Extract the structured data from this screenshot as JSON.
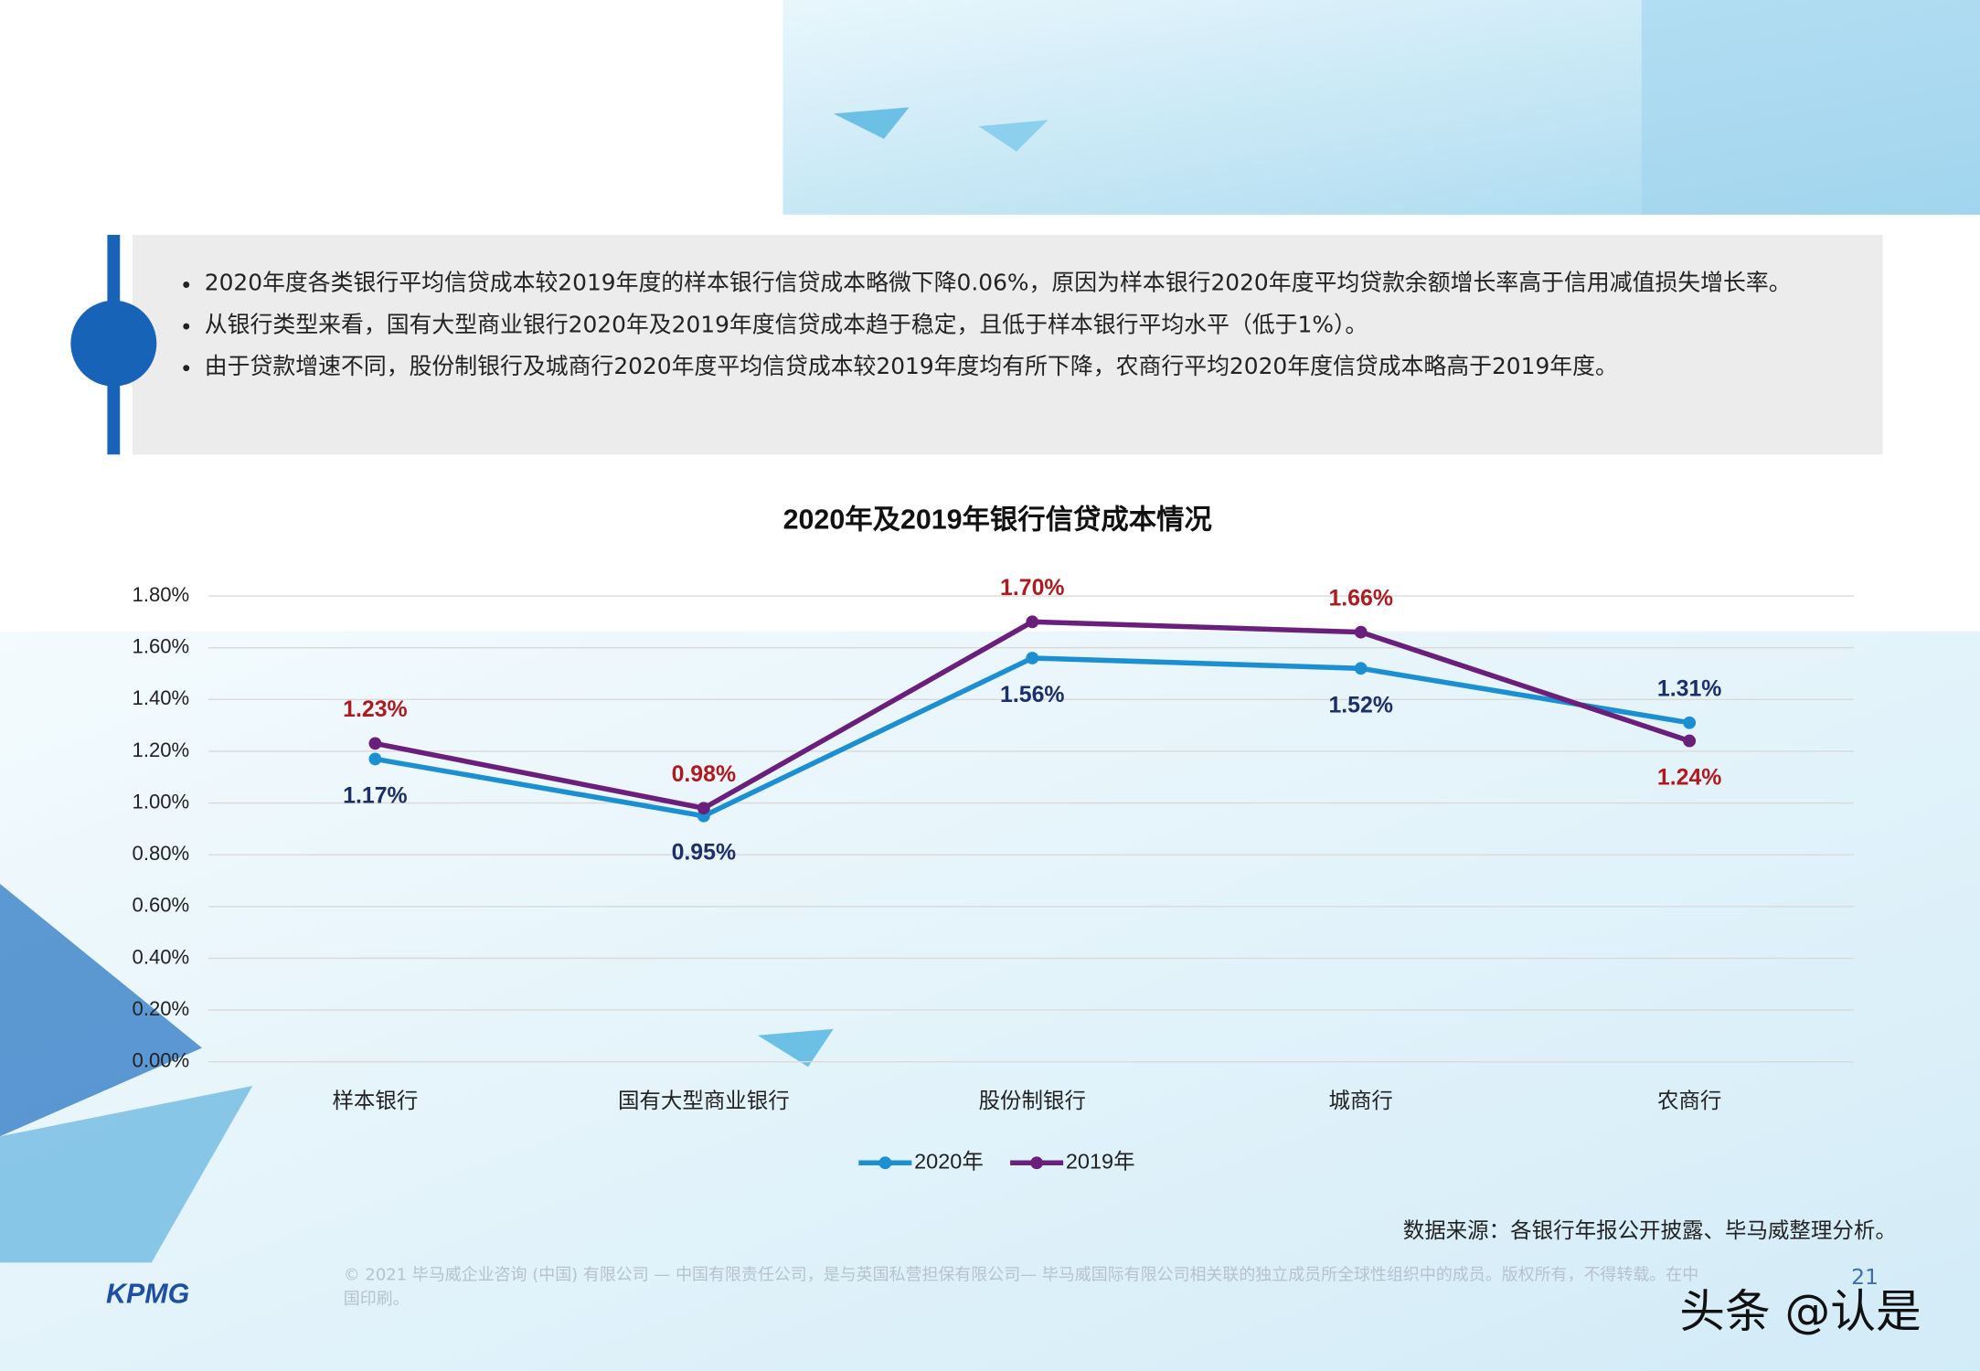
{
  "header": {
    "bullets": [
      "2020年度各类银行平均信贷成本较2019年度的样本银行信贷成本略微下降0.06%，原因为样本银行2020年度平均贷款余额增长率高于信用减值损失增长率。",
      "从银行类型来看，国有大型商业银行2020年及2019年度信贷成本趋于稳定，且低于样本银行平均水平（低于1%）。",
      "由于贷款增速不同，股份制银行及城商行2020年度平均信贷成本较2019年度均有所下降，农商行平均2020年度信贷成本略高于2019年度。"
    ]
  },
  "chart_data": {
    "type": "line",
    "title": "2020年及2019年银行信贷成本情况",
    "categories": [
      "样本银行",
      "国有大型商业银行",
      "股份制银行",
      "城商行",
      "农商行"
    ],
    "series": [
      {
        "name": "2020年",
        "color": "#1b8fd2",
        "label_color": "#1d2f6a",
        "values": [
          1.17,
          0.95,
          1.56,
          1.52,
          1.31
        ],
        "value_labels": [
          "1.17%",
          "0.95%",
          "1.56%",
          "1.52%",
          "1.31%"
        ]
      },
      {
        "name": "2019年",
        "color": "#6b1f7c",
        "label_color": "#b0191e",
        "values": [
          1.23,
          0.98,
          1.7,
          1.66,
          1.24
        ],
        "value_labels": [
          "1.23%",
          "0.98%",
          "1.70%",
          "1.66%",
          "1.24%"
        ]
      }
    ],
    "ylim": [
      0,
      1.8
    ],
    "yticks": [
      {
        "value": 0,
        "label": "0.00%"
      },
      {
        "value": 0.2,
        "label": "0.20%"
      },
      {
        "value": 0.4,
        "label": "0.40%"
      },
      {
        "value": 0.6,
        "label": "0.60%"
      },
      {
        "value": 0.8,
        "label": "0.80%"
      },
      {
        "value": 1.0,
        "label": "1.00%"
      },
      {
        "value": 1.2,
        "label": "1.20%"
      },
      {
        "value": 1.4,
        "label": "1.40%"
      },
      {
        "value": 1.6,
        "label": "1.60%"
      },
      {
        "value": 1.8,
        "label": "1.80%"
      }
    ],
    "grid": true,
    "legend": "bottom"
  },
  "footer": {
    "source": "数据来源：各银行年报公开披露、毕马威整理分析。",
    "copyright": "© 2021 毕马威企业咨询 (中国) 有限公司 — 中国有限责任公司，是与英国私营担保有限公司— 毕马威国际有限公司相关联的独立成员所全球性组织中的成员。版权所有，不得转载。在中国印刷。",
    "logo": "KPMG",
    "page": "21",
    "watermark": "头条 @认是"
  }
}
